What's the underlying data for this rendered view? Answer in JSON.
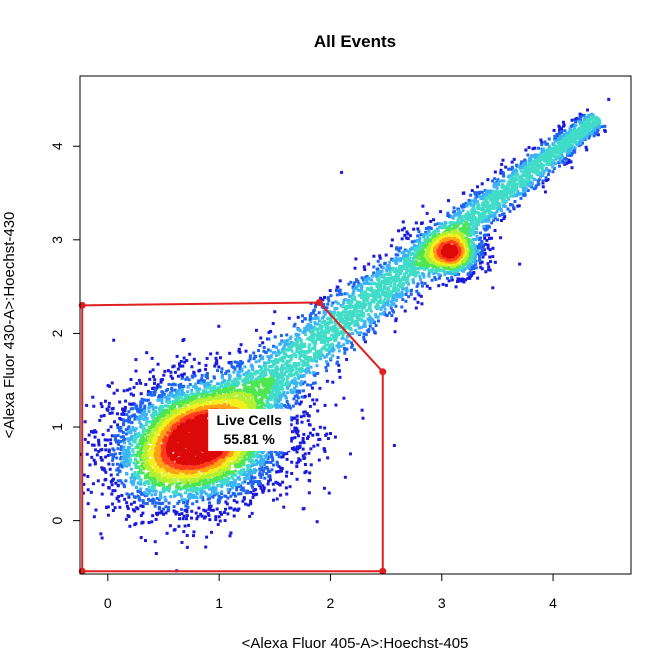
{
  "chart_data": {
    "type": "scatter",
    "subtype": "flow-cytometry-density-dot-plot",
    "title": "All Events",
    "xlabel": "<Alexa Fluor 405-A>:Hoechst-405",
    "ylabel": "<Alexa Fluor 430-A>:Hoechst-430",
    "xlim": [
      -0.25,
      4.7
    ],
    "ylim": [
      -0.57,
      4.75
    ],
    "x_ticks": [
      "0",
      "1",
      "2",
      "3",
      "4"
    ],
    "y_ticks": [
      "0",
      "1",
      "2",
      "3",
      "4"
    ],
    "grid": false,
    "legend": "none",
    "density_colormap": [
      "#1a1adc",
      "#1e64f0",
      "#3ab4f5",
      "#40dcc8",
      "#4ee650",
      "#b4f032",
      "#f0f01e",
      "#ffa014",
      "#ff3c1e",
      "#dc0a0a"
    ],
    "populations": [
      {
        "description": "main cluster",
        "x": 0.85,
        "y": 0.85,
        "sx": 0.35,
        "sy": 0.32
      },
      {
        "description": "diagonal doublet arm",
        "from": [
          0.5,
          0.6
        ],
        "to": [
          4.4,
          4.3
        ]
      },
      {
        "description": "dense hot spot",
        "x": 3.1,
        "y": 2.85
      }
    ],
    "outliers": [
      {
        "x": 2.1,
        "y": 3.72
      },
      {
        "x": 4.5,
        "y": 4.5
      },
      {
        "x": 3.55,
        "y": 3.85
      }
    ],
    "gate": {
      "name": "Live Cells",
      "percent": "55.81 %",
      "color": "#e02020",
      "vertices": [
        [
          -0.23,
          2.3
        ],
        [
          1.9,
          2.33
        ],
        [
          2.47,
          1.59
        ],
        [
          2.47,
          -0.54
        ],
        [
          -0.23,
          -0.54
        ]
      ],
      "label_anchor": [
        1.27,
        0.98
      ]
    }
  }
}
